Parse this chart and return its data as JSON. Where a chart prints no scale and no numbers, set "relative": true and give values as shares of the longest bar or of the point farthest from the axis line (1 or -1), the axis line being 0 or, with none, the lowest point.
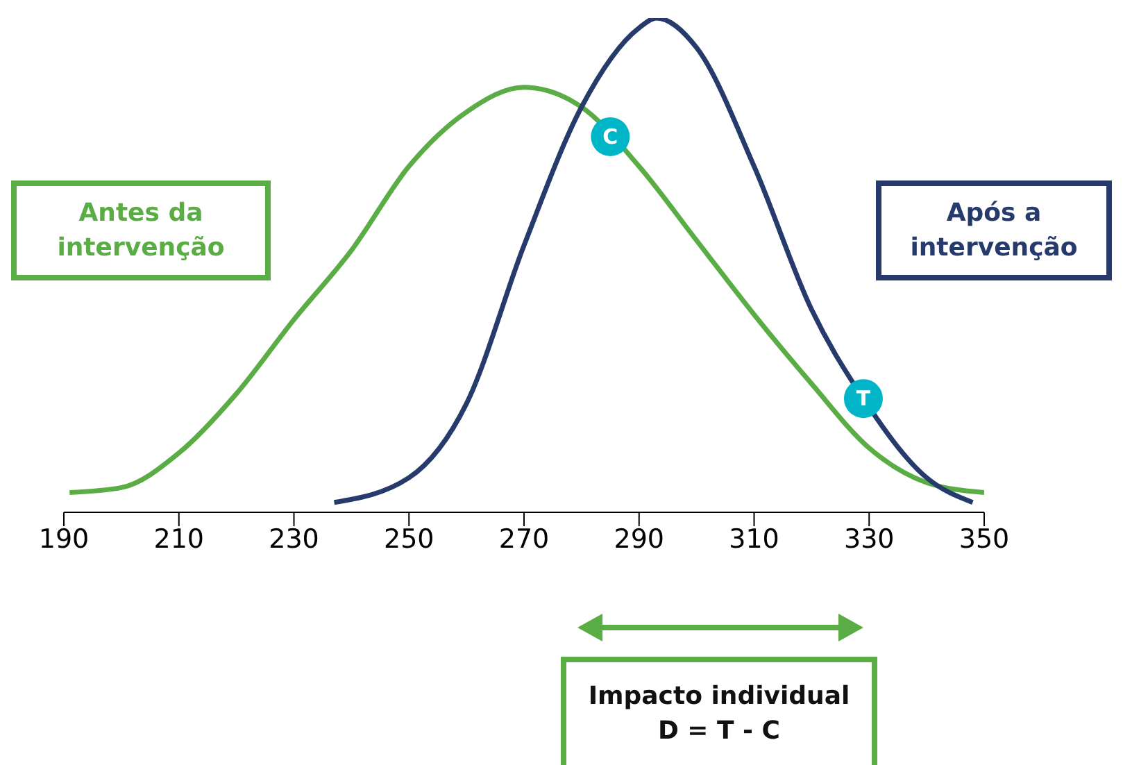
{
  "chart_data": {
    "type": "line",
    "relative": true,
    "marker": "none",
    "xlim": [
      190,
      350
    ],
    "xticks": [
      190,
      210,
      230,
      250,
      270,
      290,
      310,
      330,
      350
    ],
    "series": [
      {
        "name": "Antes da intervenção",
        "color": "#5aac44",
        "x": [
          191,
          200,
          210,
          220,
          230,
          240,
          250,
          260,
          270,
          280,
          290,
          300,
          310,
          320,
          330,
          340,
          350
        ],
        "values": [
          0.04,
          0.05,
          0.12,
          0.24,
          0.39,
          0.53,
          0.7,
          0.81,
          0.86,
          0.82,
          0.7,
          0.55,
          0.4,
          0.26,
          0.13,
          0.06,
          0.04
        ]
      },
      {
        "name": "Após a intervenção",
        "color": "#263a6b",
        "x": [
          237,
          250,
          260,
          270,
          280,
          290,
          293,
          300,
          310,
          320,
          329,
          340,
          348
        ],
        "values": [
          0.02,
          0.07,
          0.22,
          0.54,
          0.82,
          0.98,
          1.0,
          0.94,
          0.7,
          0.41,
          0.23,
          0.07,
          0.02
        ]
      }
    ],
    "annotations": [
      {
        "text": "C",
        "x": 285,
        "y": 0.76
      },
      {
        "text": "T",
        "x": 329,
        "y": 0.23
      },
      "Impacto individual\nD = T - C"
    ]
  }
}
